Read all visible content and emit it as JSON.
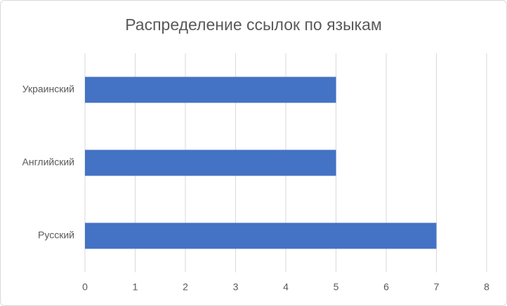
{
  "chart_data": {
    "type": "bar",
    "title": "Распределение ссылок по языкам",
    "categories": [
      "Украинский",
      "Английский",
      "Русский"
    ],
    "values": [
      5,
      5,
      7
    ],
    "color": "#4472c4",
    "xlim": [
      0,
      8
    ],
    "xticks": [
      0,
      1,
      2,
      3,
      4,
      5,
      6,
      7,
      8
    ],
    "grid": true
  }
}
